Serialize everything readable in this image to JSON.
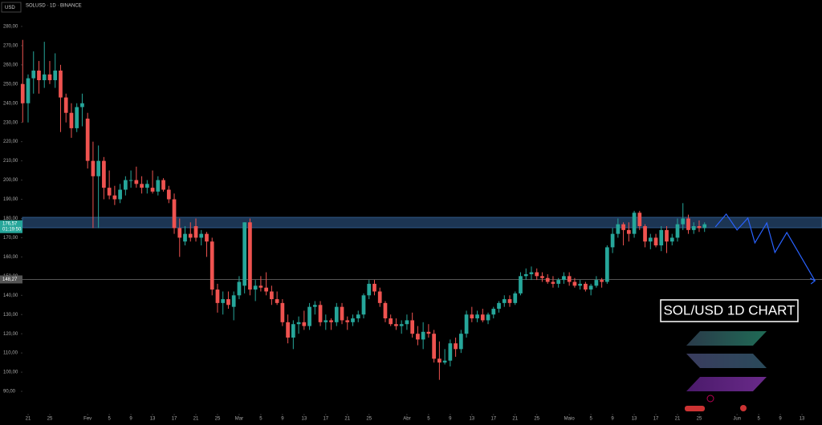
{
  "chart_data": {
    "type": "candlestick",
    "currency": "USD",
    "header": "SOLUSD · 1D · BINANCE",
    "title": "SOL/USD 1D CHART",
    "up_color": "#26a69a",
    "down_color": "#ef5350",
    "x": [
      -1,
      0,
      1,
      2,
      3,
      4,
      5,
      6,
      7,
      8,
      9,
      10,
      11,
      12,
      13,
      14,
      15,
      16,
      17,
      18,
      19,
      20,
      21,
      22,
      23,
      24,
      25,
      26,
      27,
      28,
      29,
      30,
      31,
      32,
      33,
      34,
      35,
      36,
      37,
      38,
      39,
      40,
      41,
      42,
      43,
      44,
      45,
      46,
      47,
      48,
      49,
      50,
      51,
      52,
      53,
      54,
      55,
      56,
      57,
      58,
      59,
      60,
      61,
      62,
      63,
      64,
      65,
      66,
      67,
      68,
      69,
      70,
      71,
      72,
      73,
      74,
      75,
      76,
      77,
      78,
      79,
      80,
      81,
      82,
      83,
      84,
      85,
      86,
      87,
      88,
      89,
      90,
      91,
      92,
      93,
      94,
      95,
      96,
      97,
      98,
      99,
      100,
      101,
      102,
      103,
      104,
      105,
      106,
      107,
      108,
      109,
      110,
      111,
      112,
      113,
      114,
      115,
      116,
      117,
      118,
      119,
      120,
      121,
      122,
      123,
      124,
      125
    ],
    "open": [
      250,
      240,
      253,
      257,
      252,
      255,
      252,
      257,
      243,
      235,
      227,
      238,
      232,
      210,
      202,
      210,
      196,
      192,
      190,
      195,
      200,
      200,
      198,
      196,
      196,
      194,
      200,
      195,
      190,
      175,
      168,
      172,
      176,
      170,
      172,
      168,
      143,
      136,
      138,
      134,
      140,
      145,
      178,
      143,
      145,
      144,
      142,
      138,
      136,
      126,
      118,
      125,
      126,
      124,
      134,
      135,
      126,
      127,
      126,
      134,
      127,
      126,
      128,
      130,
      140,
      146,
      142,
      136,
      128,
      125,
      124,
      125,
      127,
      120,
      117,
      121,
      120,
      107,
      105,
      106,
      115,
      112,
      120,
      130,
      128,
      130,
      127,
      130,
      133,
      136,
      138,
      136,
      141,
      150,
      151,
      152,
      150,
      149,
      147,
      146,
      148,
      150,
      147,
      145,
      146,
      143,
      145,
      148,
      147,
      165,
      172,
      177,
      174,
      172,
      183,
      176,
      168,
      170,
      166,
      174,
      168,
      170,
      177,
      180,
      174,
      176,
      175
    ],
    "high": [
      273,
      255,
      267,
      262,
      272,
      262,
      266,
      260,
      245,
      240,
      240,
      245,
      235,
      220,
      218,
      212,
      205,
      197,
      198,
      202,
      205,
      207,
      202,
      200,
      205,
      202,
      201,
      197,
      193,
      180,
      176,
      178,
      180,
      174,
      173,
      170,
      146,
      142,
      142,
      142,
      150,
      178,
      180,
      148,
      150,
      152,
      145,
      142,
      138,
      130,
      127,
      129,
      132,
      136,
      137,
      137,
      130,
      128,
      136,
      136,
      129,
      130,
      132,
      141,
      148,
      148,
      144,
      137,
      130,
      128,
      127,
      130,
      131,
      124,
      126,
      125,
      122,
      116,
      112,
      117,
      118,
      122,
      132,
      134,
      132,
      133,
      131,
      134,
      137,
      140,
      140,
      142,
      152,
      154,
      155,
      154,
      152,
      151,
      150,
      149,
      152,
      152,
      149,
      148,
      147,
      146,
      150,
      149,
      166,
      175,
      180,
      178,
      178,
      184,
      184,
      177,
      172,
      172,
      176,
      176,
      172,
      180,
      188,
      182,
      178,
      179,
      178
    ],
    "low": [
      230,
      230,
      245,
      245,
      248,
      250,
      248,
      225,
      230,
      222,
      225,
      228,
      206,
      175,
      175,
      190,
      190,
      187,
      188,
      192,
      196,
      196,
      193,
      193,
      193,
      192,
      194,
      188,
      172,
      160,
      166,
      168,
      168,
      166,
      160,
      140,
      131,
      130,
      133,
      127,
      138,
      141,
      140,
      137,
      142,
      140,
      135,
      135,
      124,
      115,
      112,
      120,
      122,
      122,
      130,
      124,
      122,
      122,
      124,
      125,
      122,
      124,
      126,
      128,
      138,
      140,
      134,
      126,
      124,
      122,
      120,
      122,
      118,
      114,
      112,
      118,
      105,
      96,
      104,
      103,
      108,
      110,
      118,
      126,
      126,
      126,
      125,
      128,
      131,
      134,
      134,
      135,
      140,
      148,
      148,
      148,
      147,
      146,
      144,
      144,
      146,
      145,
      144,
      143,
      142,
      140,
      144,
      144,
      146,
      162,
      170,
      166,
      168,
      170,
      174,
      165,
      164,
      165,
      163,
      162,
      166,
      168,
      174,
      172,
      172,
      173,
      173
    ],
    "close": [
      240,
      253,
      257,
      252,
      255,
      252,
      257,
      243,
      235,
      227,
      238,
      240,
      210,
      202,
      210,
      196,
      192,
      190,
      195,
      200,
      200,
      198,
      196,
      198,
      194,
      200,
      195,
      190,
      175,
      170,
      172,
      170,
      170,
      172,
      168,
      143,
      136,
      138,
      135,
      140,
      147,
      178,
      143,
      145,
      144,
      142,
      138,
      136,
      126,
      118,
      125,
      126,
      124,
      134,
      135,
      126,
      127,
      126,
      134,
      127,
      126,
      128,
      130,
      140,
      146,
      142,
      136,
      128,
      125,
      124,
      125,
      127,
      120,
      117,
      121,
      120,
      107,
      105,
      106,
      115,
      112,
      120,
      130,
      128,
      130,
      127,
      130,
      133,
      136,
      138,
      136,
      141,
      150,
      151,
      152,
      150,
      149,
      147,
      146,
      148,
      150,
      147,
      145,
      146,
      143,
      145,
      148,
      147,
      165,
      172,
      177,
      174,
      172,
      183,
      176,
      168,
      170,
      166,
      174,
      168,
      170,
      177,
      180,
      174,
      176,
      175,
      177
    ],
    "xlim": [
      -1.04,
      146.7
    ],
    "xticks": [
      {
        "value": 0,
        "label": "21"
      },
      {
        "value": 4,
        "label": "25"
      },
      {
        "value": 11,
        "label": "Fev"
      },
      {
        "value": 15,
        "label": "5"
      },
      {
        "value": 19,
        "label": "9"
      },
      {
        "value": 23,
        "label": "13"
      },
      {
        "value": 27,
        "label": "17"
      },
      {
        "value": 31,
        "label": "21"
      },
      {
        "value": 35,
        "label": "25"
      },
      {
        "value": 39,
        "label": "Mar"
      },
      {
        "value": 43,
        "label": "5"
      },
      {
        "value": 47,
        "label": "9"
      },
      {
        "value": 51,
        "label": "13"
      },
      {
        "value": 55,
        "label": "17"
      },
      {
        "value": 59,
        "label": "21"
      },
      {
        "value": 63,
        "label": "25"
      },
      {
        "value": 70,
        "label": "Abr"
      },
      {
        "value": 74,
        "label": "5"
      },
      {
        "value": 78,
        "label": "9"
      },
      {
        "value": 82,
        "label": "13"
      },
      {
        "value": 86,
        "label": "17"
      },
      {
        "value": 90,
        "label": "21"
      },
      {
        "value": 94,
        "label": "25"
      },
      {
        "value": 100,
        "label": "Maio"
      },
      {
        "value": 104,
        "label": "5"
      },
      {
        "value": 108,
        "label": "9"
      },
      {
        "value": 112,
        "label": "13"
      },
      {
        "value": 116,
        "label": "17"
      },
      {
        "value": 120,
        "label": "21"
      },
      {
        "value": 124,
        "label": "25"
      },
      {
        "value": 131,
        "label": "Jun"
      },
      {
        "value": 135,
        "label": "5"
      },
      {
        "value": 139,
        "label": "9"
      },
      {
        "value": 143,
        "label": "13"
      }
    ],
    "ylim": [
      78.75,
      285.4
    ],
    "yticks": [
      {
        "value": 90,
        "label": "90,00"
      },
      {
        "value": 100,
        "label": "100,00"
      },
      {
        "value": 110,
        "label": "110,00"
      },
      {
        "value": 120,
        "label": "120,00"
      },
      {
        "value": 130,
        "label": "130,00"
      },
      {
        "value": 140,
        "label": "140,00"
      },
      {
        "value": 150,
        "label": "150,00"
      },
      {
        "value": 160,
        "label": "160,00"
      },
      {
        "value": 170,
        "label": "170,00"
      },
      {
        "value": 180,
        "label": "180,00"
      },
      {
        "value": 190,
        "label": "190,00"
      },
      {
        "value": 200,
        "label": "200,00"
      },
      {
        "value": 210,
        "label": "210,00"
      },
      {
        "value": 220,
        "label": "220,00"
      },
      {
        "value": 230,
        "label": "230,00"
      },
      {
        "value": 240,
        "label": "240,00"
      },
      {
        "value": 250,
        "label": "250,00"
      },
      {
        "value": 260,
        "label": "260,00"
      },
      {
        "value": 270,
        "label": "270,00"
      },
      {
        "value": 280,
        "label": "280,00"
      }
    ],
    "zone": [
      175.2,
      180.6
    ],
    "zone_color": "#1c3553",
    "level": {
      "value": 148.27,
      "label": "148,27"
    },
    "last_price": {
      "value": 176.57,
      "label": "176,57"
    },
    "countdown": "01:19:50",
    "projection": {
      "color": "#2962ff",
      "x": [
        127,
        129,
        131,
        133,
        134.3,
        136.5,
        138,
        140.2,
        145.4
      ],
      "values": [
        175.6,
        182.3,
        174,
        180.2,
        167.3,
        177.7,
        162.3,
        172.7,
        147.6
      ]
    }
  }
}
